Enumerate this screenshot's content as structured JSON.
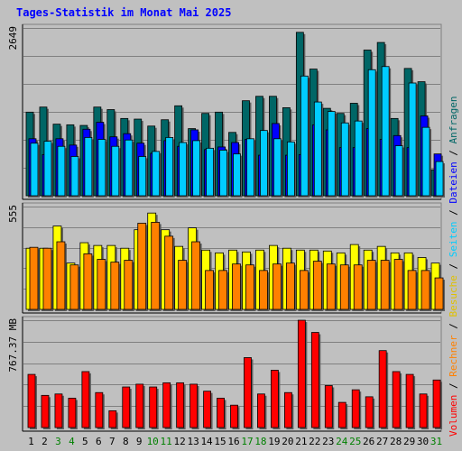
{
  "title": "Tages-Statistik im Monat Mai 2025",
  "colors": {
    "hits": "#006666",
    "files": "#00ccff",
    "pages": "#0000ff",
    "visits": "#ffff00",
    "sites": "#ff8000",
    "kbytes": "#ff0000",
    "weekday": "#000000",
    "weekend": "#008000"
  },
  "chart_data": [
    {
      "type": "bar",
      "panel": "top",
      "ymax_label": "2649",
      "ylim": [
        0,
        2649
      ],
      "series": [
        {
          "name": "Anfragen",
          "key": "hits",
          "values": [
            1320,
            1400,
            1130,
            1120,
            1110,
            1400,
            1360,
            1220,
            1210,
            1100,
            1200,
            1420,
            1060,
            1300,
            1320,
            1000,
            1500,
            1570,
            1570,
            1390,
            2580,
            2000,
            1380,
            1300,
            1460,
            2300,
            2420,
            1220,
            2010,
            1800,
            410
          ]
        },
        {
          "name": "Dateien",
          "key": "files",
          "values": [
            830,
            860,
            780,
            620,
            920,
            890,
            780,
            880,
            620,
            700,
            920,
            840,
            870,
            750,
            720,
            660,
            900,
            1030,
            900,
            850,
            1890,
            1480,
            1330,
            1150,
            1180,
            1990,
            2040,
            790,
            1780,
            1080,
            540
          ]
        },
        {
          "name": "Seiten",
          "key": "pages",
          "values": [
            900,
            650,
            900,
            800,
            1050,
            1160,
            930,
            980,
            830,
            670,
            870,
            780,
            1040,
            730,
            770,
            840,
            890,
            640,
            1140,
            640,
            650,
            1120,
            1040,
            760,
            760,
            1060,
            890,
            950,
            760,
            1260,
            660
          ]
        }
      ],
      "legend": [
        "Anfragen",
        "Dateien",
        "Seiten"
      ]
    },
    {
      "type": "bar",
      "panel": "middle",
      "ymax_label": "555",
      "ylim": [
        0,
        555
      ],
      "series": [
        {
          "name": "Besuche",
          "key": "visits",
          "values": [
            330,
            330,
            450,
            250,
            360,
            345,
            345,
            330,
            430,
            520,
            430,
            340,
            440,
            320,
            305,
            320,
            310,
            320,
            345,
            330,
            320,
            320,
            315,
            305,
            350,
            320,
            340,
            305,
            305,
            280,
            250
          ]
        },
        {
          "name": "Rechner",
          "key": "sites",
          "values": [
            335,
            330,
            365,
            240,
            300,
            270,
            255,
            265,
            465,
            470,
            395,
            265,
            365,
            210,
            210,
            245,
            240,
            210,
            245,
            250,
            210,
            260,
            245,
            240,
            240,
            265,
            265,
            270,
            210,
            210,
            170
          ]
        }
      ],
      "legend": [
        "Besuche",
        "Rechner"
      ]
    },
    {
      "type": "bar",
      "panel": "bottom",
      "ymax_label": "767.37 MB",
      "ylim": [
        0,
        767.37
      ],
      "series": [
        {
          "name": "Volumen",
          "key": "kbytes",
          "values": [
            380,
            230,
            240,
            210,
            400,
            250,
            120,
            290,
            310,
            290,
            320,
            320,
            310,
            260,
            210,
            160,
            500,
            240,
            410,
            250,
            767,
            680,
            300,
            180,
            270,
            220,
            550,
            400,
            380,
            240,
            340
          ]
        }
      ],
      "legend": [
        "Volumen"
      ]
    }
  ],
  "x_labels": [
    "1",
    "2",
    "3",
    "4",
    "5",
    "6",
    "7",
    "8",
    "9",
    "10",
    "11",
    "12",
    "13",
    "14",
    "15",
    "16",
    "17",
    "18",
    "19",
    "20",
    "21",
    "22",
    "23",
    "24",
    "25",
    "26",
    "27",
    "28",
    "29",
    "30",
    "31"
  ],
  "weekend_days": [
    3,
    4,
    10,
    11,
    17,
    18,
    24,
    25,
    31
  ],
  "legend_separator": " / "
}
